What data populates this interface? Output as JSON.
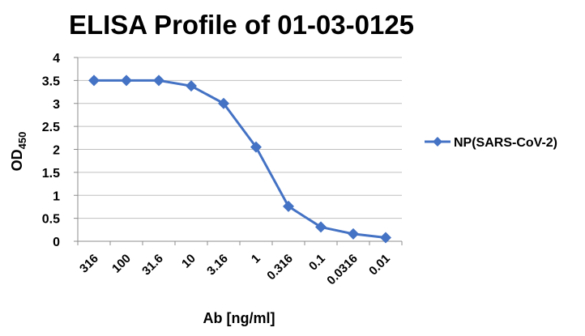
{
  "chart_data": {
    "type": "line",
    "title": "ELISA Profile of 01-03-0125",
    "xlabel": "Ab [ng/ml]",
    "ylabel": "OD",
    "ylabel_subscript": "450",
    "categories": [
      "316",
      "100",
      "31.6",
      "10",
      "3.16",
      "1",
      "0.316",
      "0.1",
      "0.0316",
      "0.01"
    ],
    "yticks": [
      "0",
      "0.5",
      "1",
      "1.5",
      "2",
      "2.5",
      "3",
      "3.5",
      "4"
    ],
    "ylim": [
      0,
      4
    ],
    "grid": "horizontal",
    "legend_position": "right",
    "series": [
      {
        "name": "NP(SARS-CoV-2)",
        "color": "#4472C4",
        "marker": "diamond",
        "values": [
          3.5,
          3.5,
          3.5,
          3.38,
          3.0,
          2.05,
          0.76,
          0.31,
          0.16,
          0.08
        ]
      }
    ]
  }
}
